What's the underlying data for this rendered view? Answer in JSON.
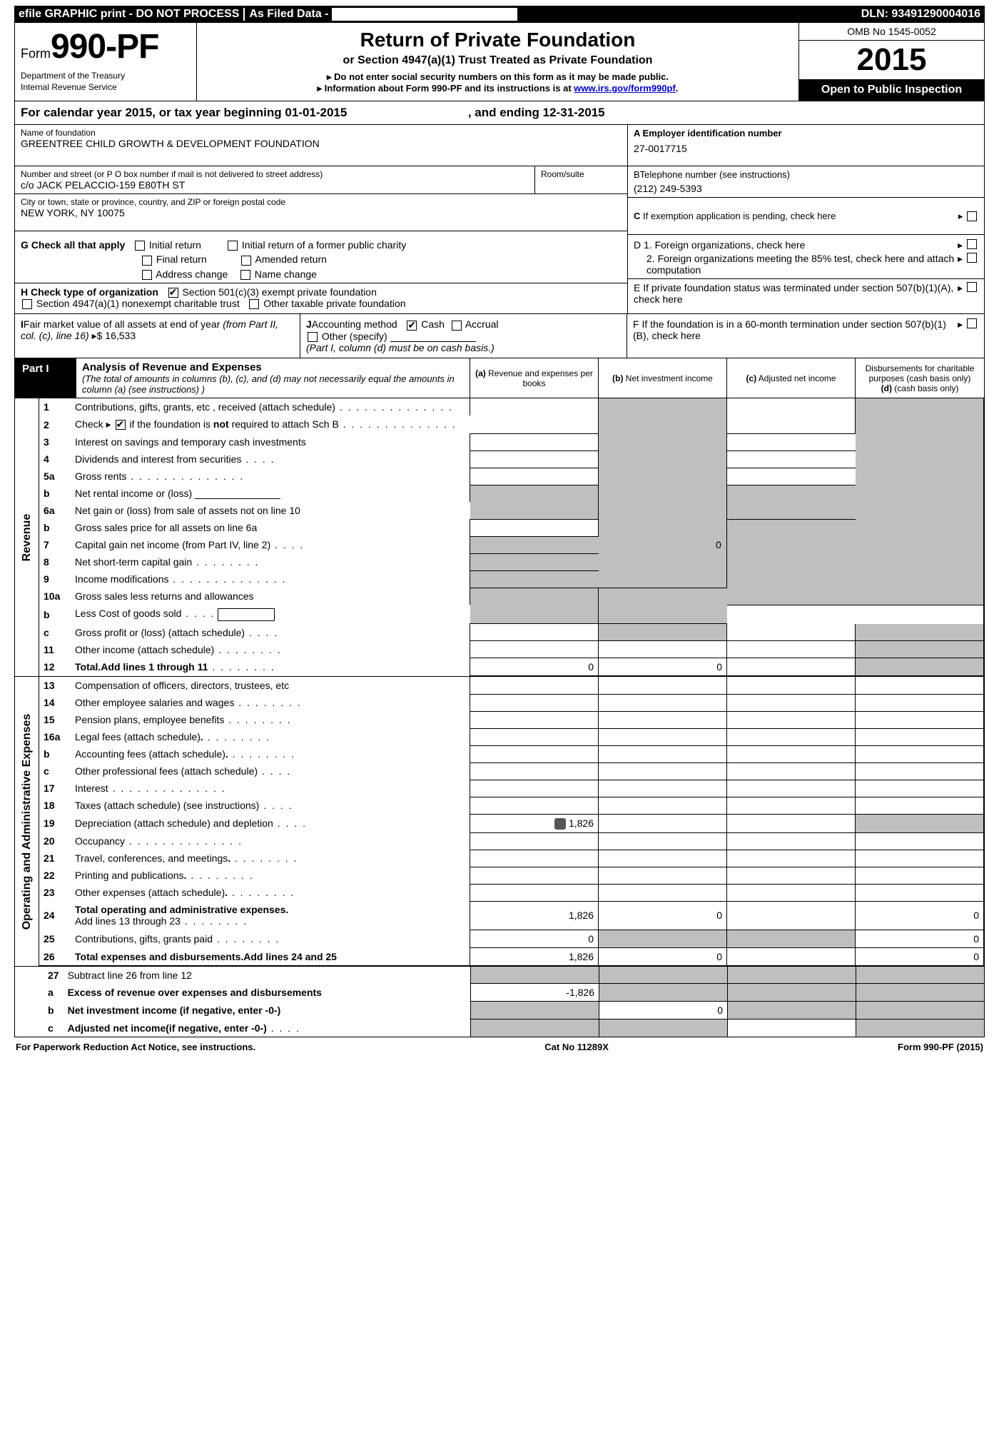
{
  "topbar": {
    "efile": "efile GRAPHIC print - DO NOT PROCESS",
    "asfiled": "As Filed Data -",
    "dln_label": "DLN:",
    "dln": "93491290004016"
  },
  "header": {
    "form_pre": "Form",
    "form_no": "990-PF",
    "dept1": "Department of the Treasury",
    "dept2": "Internal Revenue Service",
    "title": "Return of Private Foundation",
    "subtitle": "or Section 4947(a)(1) Trust Treated as Private Foundation",
    "note1": "▸ Do not enter social security numbers on this form as it may be made public.",
    "note2_pre": "▸ Information about Form 990-PF and its instructions is at ",
    "note2_link": "www.irs.gov/form990pf",
    "note2_post": ".",
    "omb": "OMB No 1545-0052",
    "year": "2015",
    "inspect": "Open to Public Inspection"
  },
  "cal": {
    "line_a": "For calendar year 2015, or tax year beginning 01-01-2015",
    "line_b": ", and ending 12-31-2015"
  },
  "entity": {
    "name_lbl": "Name of foundation",
    "name": "GREENTREE CHILD GROWTH & DEVELOPMENT FOUNDATION",
    "addr_lbl": "Number and street (or P O box number if mail is not delivered to street address)",
    "room_lbl": "Room/suite",
    "addr": "c/o JACK PELACCIO-159 E80TH ST",
    "city_lbl": "City or town, state or province, country, and ZIP or foreign postal code",
    "city": "NEW YORK, NY 10075",
    "a_lbl": "A Employer identification number",
    "a_val": "27-0017715",
    "b_lbl": "BTelephone number (see instructions)",
    "b_val": "(212) 249-5393",
    "c_lbl": "C If exemption application is pending, check here"
  },
  "g": {
    "lbl": "G Check all that apply",
    "initial": "Initial return",
    "initial_former": "Initial return of a former public charity",
    "final": "Final return",
    "amended": "Amended return",
    "addr_change": "Address change",
    "name_change": "Name change"
  },
  "h": {
    "lbl": "H Check type of organization",
    "opt1": "Section 501(c)(3) exempt private foundation",
    "opt2": "Section 4947(a)(1) nonexempt charitable trust",
    "opt3": "Other taxable private foundation"
  },
  "d": {
    "d1": "D 1. Foreign organizations, check here",
    "d2": "2. Foreign organizations meeting the 85% test, check here and attach computation"
  },
  "e": {
    "lbl": "E If private foundation status was terminated under section 507(b)(1)(A), check here"
  },
  "i": {
    "lbl": "IFair market value of all assets at end of year (from Part II, col. (c), line 16)",
    "val": "▸$ 16,533"
  },
  "j": {
    "lbl": "JAccounting method",
    "cash": "Cash",
    "accrual": "Accrual",
    "other": "Other (specify)",
    "note": "(Part I, column (d) must be on cash basis.)"
  },
  "f": {
    "lbl": "F If the foundation is in a 60-month termination under section 507(b)(1)(B), check here"
  },
  "part1": {
    "tag": "Part I",
    "title": "Analysis of Revenue and Expenses",
    "sub": "(The total of amounts in columns (b), (c), and (d) may not necessarily equal the amounts in column (a) (see instructions) )",
    "col_a": "Revenue and expenses per books",
    "col_a_pre": "(a)",
    "col_b": "Net investment income",
    "col_b_pre": "(b)",
    "col_c": "Adjusted net income",
    "col_c_pre": "(c)",
    "col_d": "Disbursements for charitable purposes (cash basis only)",
    "col_d_pre": "(d)"
  },
  "sides": {
    "rev": "Revenue",
    "exp": "Operating and Administrative Expenses"
  },
  "lines": {
    "l1": "Contributions, gifts, grants, etc , received (attach schedule)",
    "l2_a": "Check ▸",
    "l2_b": "if the foundation is ",
    "l2_c": "not",
    "l2_d": " required to attach Sch B",
    "l3": "Interest on savings and temporary cash investments",
    "l4": "Dividends and interest from securities",
    "l5a": "Gross rents",
    "l5b": "Net rental income or (loss)",
    "l6a": "Net gain or (loss) from sale of assets not on line 10",
    "l6b": "Gross sales price for all assets on line 6a",
    "l7": "Capital gain net income (from Part IV, line 2)",
    "l8": "Net short-term capital gain",
    "l9": "Income modifications",
    "l10a": "Gross sales less returns and allowances",
    "l10b": "Less Cost of goods sold",
    "l10c": "Gross profit or (loss) (attach schedule)",
    "l11": "Other income (attach schedule)",
    "l12": "Total.Add lines 1 through 11",
    "l13": "Compensation of officers, directors, trustees, etc",
    "l14": "Other employee salaries and wages",
    "l15": "Pension plans, employee benefits",
    "l16a": "Legal fees (attach schedule)",
    "l16b": "Accounting fees (attach schedule)",
    "l16c": "Other professional fees (attach schedule)",
    "l17": "Interest",
    "l18": "Taxes (attach schedule) (see instructions)",
    "l19": "Depreciation (attach schedule) and depletion",
    "l20": "Occupancy",
    "l21": "Travel, conferences, and meetings",
    "l22": "Printing and publications",
    "l23": "Other expenses (attach schedule)",
    "l24_t": "Total operating and administrative expenses.",
    "l24_s": "Add lines 13 through 23",
    "l25": "Contributions, gifts, grants paid",
    "l26": "Total expenses and disbursements.Add lines 24 and 25",
    "l27": "Subtract line 26 from line 12",
    "l27a": "Excess of revenue over expenses and disbursements",
    "l27b": "Net investment income (if negative, enter -0-)",
    "l27c": "Adjusted net income(if negative, enter -0-)"
  },
  "values": {
    "l7_b": "0",
    "l12_a": "0",
    "l12_b": "0",
    "l19_a": "1,826",
    "l24_a": "1,826",
    "l24_b": "0",
    "l24_d": "0",
    "l25_a": "0",
    "l25_d": "0",
    "l26_a": "1,826",
    "l26_b": "0",
    "l26_d": "0",
    "l27a_a": "-1,826",
    "l27b_b": "0"
  },
  "footer": {
    "left": "For Paperwork Reduction Act Notice, see instructions.",
    "mid": "Cat No 11289X",
    "right": "Form 990-PF (2015)"
  }
}
